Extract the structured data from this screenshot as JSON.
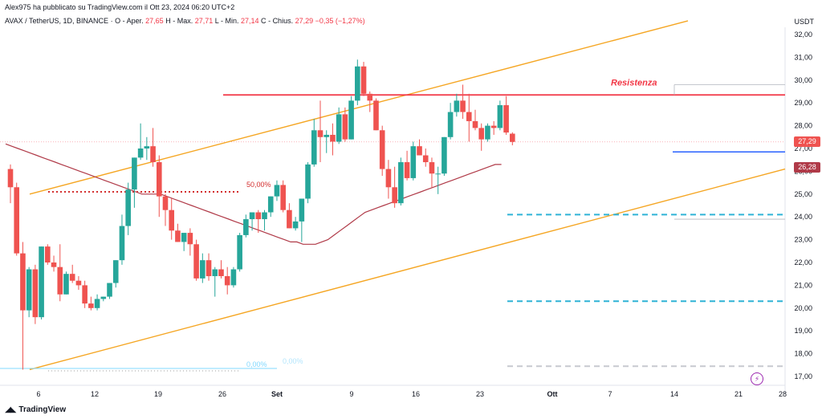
{
  "header": {
    "publish_line": "Alex975 ha pubblicato su TradingView.com il Ott 23, 2024 06:20 UTC+2",
    "symbol": "AVAX / TetherUS, 1D, BINANCE",
    "ohlc": [
      {
        "key": "O",
        "label": "Aper.",
        "value": "27,65"
      },
      {
        "key": "H",
        "label": "Max.",
        "value": "27,71"
      },
      {
        "key": "L",
        "label": "Min.",
        "value": "27,14"
      },
      {
        "key": "C",
        "label": "Chius.",
        "value": "27,29"
      }
    ],
    "change": "−0,35 (−1,27%)"
  },
  "currency": "USDT",
  "logo_text": "TradingView",
  "annotations": {
    "resistance_label": "Resistenza",
    "fib_50": "50,00%",
    "fib_0_left": "0,00%",
    "fib_0_right": "0,00%"
  },
  "price_tags": {
    "last": "27,29",
    "ma": "26,28"
  },
  "colors": {
    "up": "#26a69a",
    "down": "#ef5350",
    "channel": "#f5a623",
    "resistance": "#f23645",
    "ma": "#b03a48",
    "support_blue": "#2962ff",
    "dashed_cyan": "#2fb3d6",
    "axis_text": "#131722"
  },
  "icons": [
    "tradingview-logo-icon",
    "lightning-icon"
  ],
  "chart_data": {
    "type": "candlestick",
    "ylim": [
      16.5,
      32.5
    ],
    "y_ticks": [
      "17,00",
      "18,00",
      "19,00",
      "20,00",
      "21,00",
      "22,00",
      "23,00",
      "24,00",
      "25,00",
      "26,00",
      "27,00",
      "28,00",
      "29,00",
      "30,00",
      "31,00",
      "32,00"
    ],
    "x_ticks": [
      "6",
      "12",
      "19",
      "26",
      "Set",
      "9",
      "16",
      "23",
      "Ott",
      "7",
      "14",
      "21",
      "28"
    ],
    "candles": [
      {
        "o": 26.1,
        "h": 26.3,
        "l": 24.6,
        "c": 25.3
      },
      {
        "o": 25.3,
        "h": 25.5,
        "l": 22.3,
        "c": 22.4
      },
      {
        "o": 22.4,
        "h": 22.9,
        "l": 17.3,
        "c": 19.9
      },
      {
        "o": 19.9,
        "h": 21.8,
        "l": 19.6,
        "c": 21.7
      },
      {
        "o": 21.7,
        "h": 21.9,
        "l": 19.3,
        "c": 19.6
      },
      {
        "o": 19.6,
        "h": 22.7,
        "l": 19.5,
        "c": 22.7
      },
      {
        "o": 22.7,
        "h": 22.8,
        "l": 21.9,
        "c": 22.0
      },
      {
        "o": 22.0,
        "h": 22.3,
        "l": 21.6,
        "c": 21.8
      },
      {
        "o": 21.8,
        "h": 22.8,
        "l": 20.3,
        "c": 20.6
      },
      {
        "o": 20.6,
        "h": 21.6,
        "l": 20.6,
        "c": 21.5
      },
      {
        "o": 21.5,
        "h": 21.9,
        "l": 21.1,
        "c": 21.2
      },
      {
        "o": 21.2,
        "h": 21.4,
        "l": 20.8,
        "c": 21.0
      },
      {
        "o": 21.0,
        "h": 21.2,
        "l": 20.0,
        "c": 20.2
      },
      {
        "o": 20.2,
        "h": 20.5,
        "l": 19.9,
        "c": 20.0
      },
      {
        "o": 20.0,
        "h": 20.6,
        "l": 19.9,
        "c": 20.4
      },
      {
        "o": 20.4,
        "h": 20.5,
        "l": 20.3,
        "c": 20.5
      },
      {
        "o": 20.5,
        "h": 21.1,
        "l": 20.4,
        "c": 21.1
      },
      {
        "o": 21.1,
        "h": 22.1,
        "l": 20.9,
        "c": 22.1
      },
      {
        "o": 22.1,
        "h": 24.1,
        "l": 21.9,
        "c": 23.6
      },
      {
        "o": 23.6,
        "h": 25.5,
        "l": 23.2,
        "c": 25.2
      },
      {
        "o": 25.2,
        "h": 26.6,
        "l": 24.4,
        "c": 26.6
      },
      {
        "o": 26.6,
        "h": 28.1,
        "l": 26.5,
        "c": 27.0
      },
      {
        "o": 27.0,
        "h": 27.5,
        "l": 26.5,
        "c": 27.1
      },
      {
        "o": 27.1,
        "h": 27.9,
        "l": 26.2,
        "c": 26.4
      },
      {
        "o": 26.4,
        "h": 26.7,
        "l": 24.0,
        "c": 24.9
      },
      {
        "o": 24.9,
        "h": 25.0,
        "l": 23.6,
        "c": 24.3
      },
      {
        "o": 24.3,
        "h": 24.8,
        "l": 23.0,
        "c": 23.4
      },
      {
        "o": 23.4,
        "h": 23.7,
        "l": 22.9,
        "c": 22.9
      },
      {
        "o": 22.9,
        "h": 23.3,
        "l": 22.5,
        "c": 23.3
      },
      {
        "o": 23.3,
        "h": 23.5,
        "l": 22.3,
        "c": 22.8
      },
      {
        "o": 22.8,
        "h": 23.0,
        "l": 21.2,
        "c": 21.3
      },
      {
        "o": 21.3,
        "h": 22.4,
        "l": 21.1,
        "c": 22.1
      },
      {
        "o": 22.1,
        "h": 22.4,
        "l": 21.2,
        "c": 21.4
      },
      {
        "o": 21.4,
        "h": 21.8,
        "l": 20.5,
        "c": 21.7
      },
      {
        "o": 21.7,
        "h": 22.1,
        "l": 21.3,
        "c": 21.4
      },
      {
        "o": 21.4,
        "h": 21.8,
        "l": 20.6,
        "c": 21.0
      },
      {
        "o": 21.0,
        "h": 21.8,
        "l": 20.9,
        "c": 21.7
      },
      {
        "o": 21.7,
        "h": 23.3,
        "l": 21.6,
        "c": 23.2
      },
      {
        "o": 23.2,
        "h": 24.1,
        "l": 23.1,
        "c": 23.9
      },
      {
        "o": 23.9,
        "h": 24.2,
        "l": 23.4,
        "c": 24.2
      },
      {
        "o": 24.2,
        "h": 24.3,
        "l": 23.3,
        "c": 23.9
      },
      {
        "o": 23.9,
        "h": 24.3,
        "l": 23.4,
        "c": 24.2
      },
      {
        "o": 24.2,
        "h": 24.9,
        "l": 24.0,
        "c": 24.9
      },
      {
        "o": 24.9,
        "h": 25.6,
        "l": 24.7,
        "c": 25.4
      },
      {
        "o": 25.4,
        "h": 25.6,
        "l": 24.2,
        "c": 24.3
      },
      {
        "o": 24.3,
        "h": 24.6,
        "l": 23.5,
        "c": 23.5
      },
      {
        "o": 23.5,
        "h": 24.0,
        "l": 23.4,
        "c": 23.8
      },
      {
        "o": 23.8,
        "h": 24.8,
        "l": 22.9,
        "c": 24.8
      },
      {
        "o": 24.8,
        "h": 26.4,
        "l": 24.6,
        "c": 26.3
      },
      {
        "o": 26.3,
        "h": 28.3,
        "l": 26.2,
        "c": 27.8
      },
      {
        "o": 27.8,
        "h": 29.1,
        "l": 26.4,
        "c": 27.5
      },
      {
        "o": 27.5,
        "h": 27.8,
        "l": 26.8,
        "c": 27.6
      },
      {
        "o": 27.6,
        "h": 28.1,
        "l": 26.7,
        "c": 27.3
      },
      {
        "o": 27.3,
        "h": 28.8,
        "l": 27.2,
        "c": 28.5
      },
      {
        "o": 28.5,
        "h": 28.8,
        "l": 27.3,
        "c": 27.4
      },
      {
        "o": 27.4,
        "h": 29.3,
        "l": 27.4,
        "c": 29.1
      },
      {
        "o": 29.1,
        "h": 30.9,
        "l": 28.9,
        "c": 30.6
      },
      {
        "o": 30.6,
        "h": 30.8,
        "l": 29.3,
        "c": 29.4
      },
      {
        "o": 29.4,
        "h": 29.5,
        "l": 28.6,
        "c": 29.1
      },
      {
        "o": 29.1,
        "h": 29.2,
        "l": 27.8,
        "c": 27.8
      },
      {
        "o": 27.8,
        "h": 28.0,
        "l": 25.8,
        "c": 26.1
      },
      {
        "o": 26.1,
        "h": 26.5,
        "l": 24.8,
        "c": 25.3
      },
      {
        "o": 25.3,
        "h": 26.2,
        "l": 24.4,
        "c": 24.6
      },
      {
        "o": 24.6,
        "h": 26.6,
        "l": 24.5,
        "c": 26.4
      },
      {
        "o": 26.4,
        "h": 26.9,
        "l": 25.6,
        "c": 25.7
      },
      {
        "o": 25.7,
        "h": 27.3,
        "l": 25.6,
        "c": 27.1
      },
      {
        "o": 27.1,
        "h": 27.4,
        "l": 26.7,
        "c": 26.7
      },
      {
        "o": 26.7,
        "h": 27.0,
        "l": 26.2,
        "c": 26.4
      },
      {
        "o": 26.4,
        "h": 26.6,
        "l": 25.3,
        "c": 25.9
      },
      {
        "o": 25.9,
        "h": 26.2,
        "l": 25.0,
        "c": 25.9
      },
      {
        "o": 25.9,
        "h": 27.5,
        "l": 25.8,
        "c": 27.5
      },
      {
        "o": 27.5,
        "h": 29.0,
        "l": 27.4,
        "c": 28.6
      },
      {
        "o": 28.6,
        "h": 29.4,
        "l": 28.4,
        "c": 29.1
      },
      {
        "o": 29.1,
        "h": 29.8,
        "l": 28.3,
        "c": 28.6
      },
      {
        "o": 28.6,
        "h": 29.4,
        "l": 27.3,
        "c": 28.2
      },
      {
        "o": 28.2,
        "h": 28.7,
        "l": 27.8,
        "c": 27.9
      },
      {
        "o": 27.9,
        "h": 28.1,
        "l": 26.9,
        "c": 27.4
      },
      {
        "o": 27.4,
        "h": 28.1,
        "l": 27.3,
        "c": 28.0
      },
      {
        "o": 28.0,
        "h": 28.2,
        "l": 27.6,
        "c": 27.9
      },
      {
        "o": 27.9,
        "h": 29.1,
        "l": 27.8,
        "c": 28.9
      },
      {
        "o": 28.9,
        "h": 29.3,
        "l": 27.6,
        "c": 27.7
      },
      {
        "o": 27.65,
        "h": 27.71,
        "l": 27.14,
        "c": 27.29
      }
    ],
    "moving_average": [
      27.2,
      27.1,
      27.0,
      26.9,
      26.8,
      26.7,
      26.6,
      26.5,
      26.4,
      26.3,
      26.2,
      26.1,
      26.0,
      25.9,
      25.8,
      25.7,
      25.6,
      25.5,
      25.4,
      25.3,
      25.2,
      25.1,
      25.0,
      25.0,
      25.0,
      25.0,
      24.9,
      24.8,
      24.7,
      24.6,
      24.5,
      24.4,
      24.3,
      24.2,
      24.1,
      24.0,
      23.9,
      23.8,
      23.7,
      23.6,
      23.5,
      23.4,
      23.3,
      23.2,
      23.1,
      23.0,
      22.9,
      22.9,
      22.8,
      22.8,
      22.8,
      22.9,
      23.0,
      23.2,
      23.4,
      23.6,
      23.8,
      24.0,
      24.2,
      24.3,
      24.4,
      24.5,
      24.6,
      24.7,
      24.8,
      24.9,
      25.0,
      25.1,
      25.2,
      25.3,
      25.4,
      25.5,
      25.6,
      25.7,
      25.8,
      25.9,
      26.0,
      26.1,
      26.2,
      26.3,
      26.3
    ],
    "lines": {
      "channel_upper": [
        [
          0,
          25.0
        ],
        [
          80,
          32.6
        ]
      ],
      "channel_lower": [
        [
          0,
          17.3
        ],
        [
          92,
          26.1
        ]
      ],
      "resistance": 29.35,
      "fib_50": 25.1,
      "fib_0": 17.35,
      "support": 26.85,
      "dashed_24": 24.1,
      "dashed_20": 20.3,
      "dashed_grey": 17.45,
      "last_price_line": 27.29
    }
  }
}
